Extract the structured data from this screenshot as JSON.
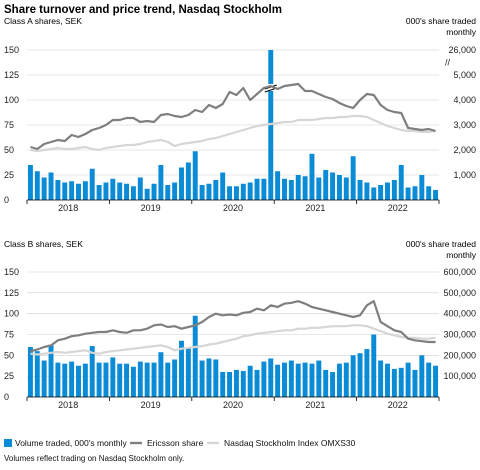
{
  "title": "Share turnover and price trend, Nasdaq Stockholm",
  "footnote": "Volumes reflect trading on Nasdaq Stockholm only.",
  "legend": {
    "volume": "Volume traded, 000's monthly",
    "ericsson": "Ericsson share",
    "index": "Nasdaq Stockholm Index OMXS30"
  },
  "colors": {
    "bar": "#0a8bd6",
    "ericsson": "#7f7f7f",
    "index": "#d6d6d6",
    "grid": "#cfcfcf"
  },
  "chart_data": [
    {
      "type": "bar",
      "panel_label": "Class A shares, SEK",
      "right_label": "000's share traded\nmonthly",
      "x_labels": [
        "2018",
        "2019",
        "2020",
        "2021",
        "2022"
      ],
      "y_left_ticks": [
        0,
        25,
        50,
        75,
        100,
        125,
        150
      ],
      "y_left_lim": [
        0,
        150
      ],
      "y_right_ticks": [
        "",
        "1,000",
        "2,000",
        "3,000",
        "4,000",
        "5,000",
        "26,000"
      ],
      "y_right_lim": [
        0,
        6000
      ],
      "axis_break_symbol": "//",
      "months": 60,
      "volume": [
        1400,
        1150,
        900,
        1100,
        800,
        700,
        750,
        650,
        750,
        1250,
        600,
        700,
        850,
        700,
        650,
        550,
        900,
        450,
        650,
        1400,
        600,
        700,
        1300,
        1500,
        1950,
        600,
        650,
        800,
        1100,
        550,
        550,
        650,
        700,
        850,
        850,
        26000,
        1150,
        850,
        800,
        1000,
        950,
        1850,
        900,
        1200,
        1100,
        1000,
        900,
        1750,
        800,
        700,
        500,
        600,
        700,
        800,
        1400,
        500,
        550,
        1000,
        550,
        400
      ],
      "ericsson": [
        53,
        51,
        56,
        58,
        60,
        59,
        65,
        63,
        66,
        70,
        72,
        75,
        80,
        80,
        82,
        82,
        78,
        79,
        78,
        85,
        86,
        84,
        83,
        85,
        90,
        88,
        95,
        92,
        96,
        108,
        105,
        112,
        100,
        106,
        112,
        114,
        111,
        114,
        115,
        116,
        109,
        109,
        106,
        103,
        101,
        97,
        94,
        92,
        100,
        106,
        105,
        95,
        90,
        88,
        87,
        72,
        71,
        70,
        71,
        69
      ],
      "index": [
        50,
        49,
        50,
        51,
        52,
        51,
        51,
        52,
        53,
        51,
        50,
        52,
        53,
        54,
        55,
        55,
        56,
        58,
        59,
        60,
        58,
        54,
        56,
        57,
        58,
        59,
        61,
        62,
        64,
        66,
        68,
        70,
        72,
        74,
        75,
        76,
        77,
        78,
        78,
        80,
        80,
        80,
        81,
        82,
        82,
        83,
        83,
        84,
        84,
        83,
        80,
        77,
        74,
        72,
        70,
        69,
        69,
        68,
        68,
        69
      ]
    },
    {
      "type": "bar",
      "panel_label": "Class B shares, SEK",
      "right_label": "000's share traded\nmonthly",
      "x_labels": [
        "2018",
        "2019",
        "2020",
        "2021",
        "2022"
      ],
      "y_left_ticks": [
        0,
        25,
        50,
        75,
        100,
        125,
        150
      ],
      "y_left_lim": [
        0,
        150
      ],
      "y_right_ticks": [
        "",
        "100,000",
        "200,000",
        "300,000",
        "400,000",
        "500,000",
        "600,000"
      ],
      "y_right_lim": [
        0,
        600000
      ],
      "months": 60,
      "volume": [
        240000,
        220000,
        175000,
        250000,
        165000,
        160000,
        170000,
        150000,
        160000,
        245000,
        165000,
        165000,
        190000,
        160000,
        160000,
        145000,
        170000,
        165000,
        165000,
        215000,
        165000,
        180000,
        270000,
        235000,
        390000,
        175000,
        185000,
        180000,
        120000,
        120000,
        130000,
        125000,
        150000,
        130000,
        170000,
        185000,
        155000,
        165000,
        175000,
        160000,
        165000,
        160000,
        175000,
        130000,
        120000,
        160000,
        165000,
        200000,
        210000,
        230000,
        300000,
        175000,
        160000,
        135000,
        140000,
        165000,
        130000,
        200000,
        165000,
        150000
      ],
      "ericsson": [
        55,
        57,
        60,
        62,
        68,
        70,
        73,
        74,
        76,
        77,
        78,
        78,
        80,
        78,
        77,
        80,
        80,
        82,
        86,
        87,
        84,
        85,
        82,
        84,
        86,
        90,
        96,
        100,
        98,
        99,
        98,
        101,
        102,
        106,
        104,
        110,
        108,
        112,
        113,
        115,
        112,
        108,
        106,
        104,
        102,
        100,
        98,
        96,
        98,
        110,
        115,
        90,
        85,
        80,
        78,
        70,
        68,
        67,
        66,
        66
      ],
      "index": [
        52,
        51,
        52,
        53,
        54,
        53,
        54,
        55,
        56,
        53,
        52,
        54,
        55,
        56,
        57,
        58,
        59,
        60,
        61,
        62,
        60,
        56,
        58,
        59,
        60,
        61,
        63,
        64,
        66,
        68,
        70,
        73,
        74,
        76,
        77,
        78,
        79,
        80,
        80,
        82,
        82,
        83,
        83,
        84,
        85,
        85,
        85,
        86,
        86,
        85,
        82,
        79,
        76,
        74,
        72,
        71,
        71,
        70,
        70,
        71
      ]
    }
  ]
}
